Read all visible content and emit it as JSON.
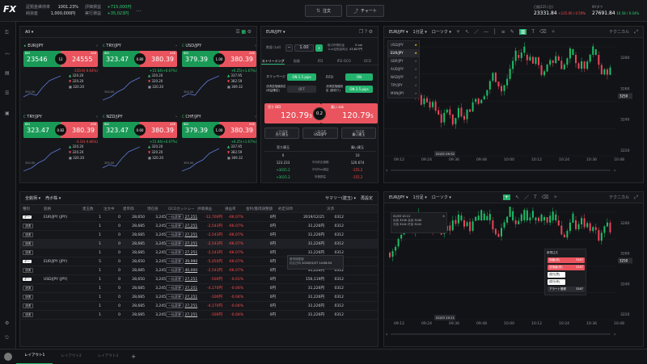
{
  "app": {
    "logo": "FX",
    "colors": {
      "bid": "#1a9a57",
      "ask": "#e9545e",
      "accent": "#23b26d"
    }
  },
  "top": {
    "stats": [
      {
        "label": "証拠金維持率",
        "value": "1001.23%"
      },
      {
        "label": "純資産",
        "value": "1,000,000円"
      },
      {
        "label": "評価損益",
        "value": "+715,000円"
      },
      {
        "label": "実行損益",
        "value": "+35,023円"
      }
    ],
    "more": "…",
    "order_label": "注文",
    "chart_label": "チャート",
    "nikkei": {
      "label": "日経225 (日)",
      "value": "23331.84",
      "change": "+125.00 / 0.59%"
    },
    "ny": {
      "label": "NYダウ",
      "value": "27691.84",
      "change": "10.58 / 0.04%"
    }
  },
  "rates": {
    "filter": "All",
    "tiles": [
      {
        "pair": "EUR/JPY",
        "flag": "★",
        "bid_label": "BID",
        "ask_label": "ASK",
        "bid": "23546",
        "spread": "12",
        "ask": "24555",
        "change": "-150.6(-0.64%)",
        "change_dir": "neg",
        "high": "320.20",
        "low": "320.20",
        "close": "320.20",
        "axis": "300.00"
      },
      {
        "pair": "TRY/JPY",
        "flag": "C",
        "bid_label": "BID",
        "ask_label": "ASK",
        "bid": "323.47",
        "spread": "0.80",
        "ask": "380.39",
        "change": "+15.64(+6.67%)",
        "change_dir": "pos",
        "high": "320.20",
        "low": "320.20",
        "close": "320.20",
        "axis": "300.00"
      },
      {
        "pair": "USD/JPY",
        "flag": "C",
        "bid_label": "BID",
        "ask_label": "ASK",
        "bid": "379.39",
        "spread": "1.00",
        "ask": "380.39",
        "change": "+6.25(+1.67%)",
        "change_dir": "pos",
        "high": "337.95",
        "low": "382.59",
        "close": "369.32",
        "axis": "300.00"
      },
      {
        "pair": "TRY/JPY",
        "flag": "C",
        "bid_label": "BID",
        "ask_label": "ASK",
        "bid": "323.47",
        "spread": "0.82",
        "ask": "380.39",
        "change": "-3.16(-0.86%)",
        "change_dir": "neg",
        "high": "320.20",
        "low": "320.20",
        "close": "320.20",
        "axis": "300.00"
      },
      {
        "pair": "NZD/JPY",
        "flag": "C",
        "bid_label": "BID",
        "ask_label": "ASK",
        "bid": "323.47",
        "spread": "0.60",
        "ask": "380.39",
        "change": "+15.64(+6.67%)",
        "change_dir": "pos",
        "high": "320.20",
        "low": "320.20",
        "close": "320.20",
        "axis": "300.00"
      },
      {
        "pair": "CHF/JPY",
        "flag": "C",
        "bid_label": "BID",
        "ask_label": "ASK",
        "bid": "379.39",
        "spread": "1.00",
        "ask": "380.39",
        "change": "+6.25(+1.67%)",
        "change_dir": "pos",
        "high": "337.95",
        "low": "382.59",
        "close": "369.32",
        "axis": "300.00"
      }
    ]
  },
  "order": {
    "pair": "EUR/JPY",
    "qty_label": "数量 (Lot)",
    "qty": "1.00",
    "margin_label": "取引所預託金",
    "margin_value": "1Lot証拠金時点",
    "margin_num": "0 Lot",
    "margin_num2": "43,627円",
    "tabs": [
      "ストリーミング",
      "指値",
      "IFD",
      "IFD-OCO",
      "OCO"
    ],
    "slip_label": "スリッページ",
    "slip_on": "ON",
    "slip_val": "1.5 pips",
    "fifo_label": "FIFO",
    "fifo_on": "ON",
    "tp_label": "決済逆指値設定 (利益確定)",
    "tp_off": "OFF",
    "sl_label": "決済逆指値設定 (損切り)",
    "sl_on": "ON",
    "sl_val": "3.5 pips",
    "sell_label": "売り BID",
    "sell_big": "120.79",
    "sell_small": "3",
    "spread": "0.2",
    "buy_label": "買い ask",
    "buy_big": "120.79",
    "buy_small": "5",
    "sub_buttons": [
      {
        "top": "一括決済",
        "bottom": "売り建玉"
      },
      {
        "top": "一括決済",
        "bottom": "USD/JPY"
      },
      {
        "top": "一括決済",
        "bottom": "買い建玉"
      }
    ],
    "stats_headers": [
      "売り建玉",
      "",
      "買い建玉"
    ],
    "stats_rows": [
      [
        "0",
        "",
        "10"
      ],
      [
        "123.233",
        "平均約定価格",
        "120.674"
      ],
      [
        "+3015.2",
        "平均Pips損益",
        "-155.2"
      ],
      [
        "+3015.2",
        "評価損益",
        "-155.2"
      ]
    ]
  },
  "charts": [
    {
      "pair": "EUR/JPY",
      "tf": "1分足",
      "type": "ローソク",
      "tech": "テクニカル",
      "pairs": [
        "USD/JPY",
        "EUR/JPY",
        "GBP/JPY",
        "AUD/JPY",
        "NAD/JPY",
        "TRY/JPY",
        "MXN/JPY"
      ],
      "times": [
        "09:12",
        "09:24",
        "09:36",
        "09:48",
        "10:00",
        "10:12",
        "10:24",
        "10:36",
        "10:48"
      ],
      "prices": [
        "3280",
        "3260",
        "3240",
        "3220"
      ],
      "cursor_time": "02/02 09:32",
      "cursor_price": "3250"
    },
    {
      "pair": "EUR/JPY",
      "tf": "1分足",
      "type": "ローソク",
      "tech": "テクニカル",
      "times": [
        "09:12",
        "09:24",
        "09:36",
        "09:48",
        "10:00",
        "10:12",
        "10:24",
        "10:36",
        "10:48"
      ],
      "prices": [
        "3280",
        "3260",
        "3240",
        "3220"
      ],
      "tooltip": {
        "date": "02/03 10:11",
        "open_l": "始値",
        "open": "3240",
        "high_l": "高値",
        "high": "3240",
        "low_l": "安値",
        "low": "3241",
        "close_l": "終値",
        "close": "3241"
      },
      "cursor_time": "02/03 10:11",
      "cursor_price": "3250",
      "quick": {
        "title": "新規注文",
        "items": [
          {
            "label": "指値(売)",
            "value": "3287"
          },
          {
            "label": "逆指値(売)",
            "value": "3287"
          },
          {
            "label": "成行(買)",
            "value": ""
          },
          {
            "label": "成行(売)",
            "value": ""
          },
          {
            "label": "アラート登録",
            "value": "3287"
          }
        ]
      }
    }
  ],
  "positions": {
    "filters": [
      "全銘柄",
      "売ボ株"
    ],
    "summary_label": "サマリー(建玉)",
    "refresh_label": "再設定",
    "headers": [
      "種別",
      "銘柄",
      "建玉数",
      "注文中",
      "建単価",
      "現在値",
      "OCOカットレート",
      "評価損益",
      "損益率",
      "金利/獲得調整額",
      "約定日時",
      "決済"
    ],
    "rows": [
      {
        "side": "ギー",
        "pair": "EUR/JPY (JPY)",
        "qty": "1",
        "ord": "0",
        "price": "28,650",
        "cur": "3,245",
        "oco_tag": "一括変更",
        "oco": "27,251",
        "pl": "-12,700円",
        "rate": "-66.07%",
        "swap": "0円",
        "date": "2019/12/25",
        "num": "0312"
      },
      {
        "side": "決済",
        "pair": "",
        "qty": "1",
        "ord": "0",
        "price": "28,685",
        "cur": "3,245",
        "oco_tag": "一括変更",
        "oco": "27,251",
        "pl": "-2,543円",
        "rate": "-66.07%",
        "swap": "0円",
        "date": "31,226円",
        "num": "0312"
      },
      {
        "side": "決済",
        "pair": "",
        "qty": "1",
        "ord": "0",
        "price": "28,685",
        "cur": "3,245",
        "oco_tag": "一括変更",
        "oco": "27,251",
        "pl": "-2,543円",
        "rate": "-66.07%",
        "swap": "0円",
        "date": "31,226円",
        "num": "0312"
      },
      {
        "side": "決済",
        "pair": "",
        "qty": "1",
        "ord": "0",
        "price": "28,685",
        "cur": "3,245",
        "oco_tag": "一括変更",
        "oco": "27,251",
        "pl": "-2,543円",
        "rate": "-66.07%",
        "swap": "0円",
        "date": "31,226円",
        "num": "0312"
      },
      {
        "side": "決済",
        "pair": "",
        "qty": "1",
        "ord": "0",
        "price": "28,685",
        "cur": "3,245",
        "oco_tag": "一括変更",
        "oco": "27,251",
        "pl": "-2,543円",
        "rate": "-66.07%",
        "swap": "0円",
        "date": "31,226円",
        "num": "0312"
      },
      {
        "side": "ギー",
        "pair": "EUR/JPY (JPY)",
        "qty": "5",
        "ord": "0",
        "price": "28,650",
        "cur": "3,245",
        "oco_tag": "一括変更",
        "oco": "39,990",
        "pl": "-5,050円",
        "rate": "-66.07%",
        "swap": "0円",
        "date": "277,384円",
        "num": "0312"
      },
      {
        "side": "決済",
        "pair": "",
        "qty": "1",
        "ord": "0",
        "price": "28,685",
        "cur": "3,245",
        "oco_tag": "一括変更",
        "oco": "40,000",
        "pl": "-2,543円",
        "rate": "-66.07%",
        "swap": "0円",
        "date": "31,226円",
        "num": "0312"
      },
      {
        "side": "ギー",
        "pair": "USD/JPY (JPY)",
        "qty": "1",
        "ord": "0",
        "price": "28,650",
        "cur": "3,245",
        "oco_tag": "一括変更",
        "oco": "27,251",
        "pl": "-500円",
        "rate": "-0.01%",
        "swap": "0円",
        "date": "156,119円",
        "num": "0312"
      },
      {
        "side": "決済",
        "pair": "",
        "qty": "1",
        "ord": "0",
        "price": "28,685",
        "cur": "3,245",
        "oco_tag": "一括変更",
        "oco": "27,251",
        "pl": "-4,170円",
        "rate": "-0.04%",
        "swap": "0円",
        "date": "31,226円",
        "num": "0312"
      },
      {
        "side": "決済",
        "pair": "",
        "qty": "1",
        "ord": "0",
        "price": "28,685",
        "cur": "3,245",
        "oco_tag": "一括変更",
        "oco": "27,251",
        "pl": "-100円",
        "rate": "-0.04%",
        "swap": "0円",
        "date": "31,226円",
        "num": "0312"
      },
      {
        "side": "決済",
        "pair": "",
        "qty": "1",
        "ord": "0",
        "price": "28,685",
        "cur": "3,245",
        "oco_tag": "一括変更",
        "oco": "27,251",
        "pl": "-4,170円",
        "rate": "-0.04%",
        "swap": "0円",
        "date": "31,226円",
        "num": "0312"
      },
      {
        "side": "決済",
        "pair": "",
        "qty": "1",
        "ord": "0",
        "price": "28,685",
        "cur": "3,245",
        "oco_tag": "一括変更",
        "oco": "27,251",
        "pl": "-100円",
        "rate": "-0.04%",
        "swap": "0円",
        "date": "31,226円",
        "num": "0312"
      }
    ],
    "tooltip": {
      "l1": "獲得調整額",
      "l2": "約定日時",
      "v2": "2020/01/27 14:08:54"
    }
  },
  "layouts": {
    "tabs": [
      "レイアウト1",
      "レイアウト2",
      "レイアウト3"
    ],
    "add": "+"
  }
}
